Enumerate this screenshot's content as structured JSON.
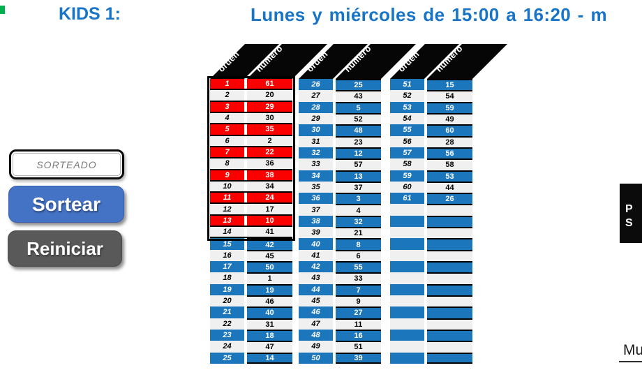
{
  "header": {
    "class_label": "KIDS 1:",
    "schedule": "Lunes y miércoles de 15:00 a 16:20 - m"
  },
  "controls": {
    "sorteado_label": "SORTEADO",
    "sortear_label": "Sortear",
    "reiniciar_label": "Reiniciar"
  },
  "table_headers": {
    "orden": "orden",
    "numero": "número"
  },
  "tables": [
    {
      "name": "orden-1-25",
      "boxed_rows": 14,
      "rows": [
        {
          "o": "1",
          "n": "61",
          "s": "red"
        },
        {
          "o": "2",
          "n": "20",
          "s": "light"
        },
        {
          "o": "3",
          "n": "29",
          "s": "red"
        },
        {
          "o": "4",
          "n": "30",
          "s": "light"
        },
        {
          "o": "5",
          "n": "35",
          "s": "red"
        },
        {
          "o": "6",
          "n": "2",
          "s": "light"
        },
        {
          "o": "7",
          "n": "22",
          "s": "red"
        },
        {
          "o": "8",
          "n": "36",
          "s": "light"
        },
        {
          "o": "9",
          "n": "38",
          "s": "red"
        },
        {
          "o": "10",
          "n": "34",
          "s": "light"
        },
        {
          "o": "11",
          "n": "24",
          "s": "red"
        },
        {
          "o": "12",
          "n": "17",
          "s": "light"
        },
        {
          "o": "13",
          "n": "10",
          "s": "red"
        },
        {
          "o": "14",
          "n": "41",
          "s": "light"
        },
        {
          "o": "15",
          "n": "42",
          "s": "blue"
        },
        {
          "o": "16",
          "n": "45",
          "s": "light"
        },
        {
          "o": "17",
          "n": "50",
          "s": "blue"
        },
        {
          "o": "18",
          "n": "1",
          "s": "light"
        },
        {
          "o": "19",
          "n": "19",
          "s": "blue"
        },
        {
          "o": "20",
          "n": "46",
          "s": "light"
        },
        {
          "o": "21",
          "n": "40",
          "s": "blue"
        },
        {
          "o": "22",
          "n": "31",
          "s": "light"
        },
        {
          "o": "23",
          "n": "18",
          "s": "blue"
        },
        {
          "o": "24",
          "n": "47",
          "s": "light"
        },
        {
          "o": "25",
          "n": "14",
          "s": "blue"
        }
      ]
    },
    {
      "name": "orden-26-50",
      "boxed_rows": 0,
      "rows": [
        {
          "o": "26",
          "n": "25",
          "s": "blue"
        },
        {
          "o": "27",
          "n": "43",
          "s": "light"
        },
        {
          "o": "28",
          "n": "5",
          "s": "blue"
        },
        {
          "o": "29",
          "n": "52",
          "s": "light"
        },
        {
          "o": "30",
          "n": "48",
          "s": "blue"
        },
        {
          "o": "31",
          "n": "23",
          "s": "light"
        },
        {
          "o": "32",
          "n": "12",
          "s": "blue"
        },
        {
          "o": "33",
          "n": "57",
          "s": "light"
        },
        {
          "o": "34",
          "n": "13",
          "s": "blue"
        },
        {
          "o": "35",
          "n": "37",
          "s": "light"
        },
        {
          "o": "36",
          "n": "3",
          "s": "blue"
        },
        {
          "o": "37",
          "n": "4",
          "s": "light"
        },
        {
          "o": "38",
          "n": "32",
          "s": "blue"
        },
        {
          "o": "39",
          "n": "21",
          "s": "light"
        },
        {
          "o": "40",
          "n": "8",
          "s": "blue"
        },
        {
          "o": "41",
          "n": "6",
          "s": "light"
        },
        {
          "o": "42",
          "n": "55",
          "s": "blue"
        },
        {
          "o": "43",
          "n": "33",
          "s": "light"
        },
        {
          "o": "44",
          "n": "7",
          "s": "blue"
        },
        {
          "o": "45",
          "n": "9",
          "s": "light"
        },
        {
          "o": "46",
          "n": "27",
          "s": "blue"
        },
        {
          "o": "47",
          "n": "11",
          "s": "light"
        },
        {
          "o": "48",
          "n": "16",
          "s": "blue"
        },
        {
          "o": "49",
          "n": "51",
          "s": "light"
        },
        {
          "o": "50",
          "n": "39",
          "s": "blue"
        }
      ]
    },
    {
      "name": "orden-51-75",
      "boxed_rows": 0,
      "rows": [
        {
          "o": "51",
          "n": "15",
          "s": "blue"
        },
        {
          "o": "52",
          "n": "54",
          "s": "light"
        },
        {
          "o": "53",
          "n": "59",
          "s": "blue"
        },
        {
          "o": "54",
          "n": "49",
          "s": "light"
        },
        {
          "o": "55",
          "n": "60",
          "s": "blue"
        },
        {
          "o": "56",
          "n": "28",
          "s": "light"
        },
        {
          "o": "57",
          "n": "56",
          "s": "blue"
        },
        {
          "o": "58",
          "n": "58",
          "s": "light"
        },
        {
          "o": "59",
          "n": "53",
          "s": "blue"
        },
        {
          "o": "60",
          "n": "44",
          "s": "light"
        },
        {
          "o": "61",
          "n": "26",
          "s": "blue"
        },
        {
          "o": "",
          "n": "",
          "s": "light-empty"
        },
        {
          "o": "",
          "n": "",
          "s": "blue-empty"
        },
        {
          "o": "",
          "n": "",
          "s": "light-empty"
        },
        {
          "o": "",
          "n": "",
          "s": "blue-empty"
        },
        {
          "o": "",
          "n": "",
          "s": "light-empty"
        },
        {
          "o": "",
          "n": "",
          "s": "blue-empty"
        },
        {
          "o": "",
          "n": "",
          "s": "light-empty"
        },
        {
          "o": "",
          "n": "",
          "s": "blue-empty"
        },
        {
          "o": "",
          "n": "",
          "s": "light-empty"
        },
        {
          "o": "",
          "n": "",
          "s": "blue-empty"
        },
        {
          "o": "",
          "n": "",
          "s": "light-empty"
        },
        {
          "o": "",
          "n": "",
          "s": "blue-empty"
        },
        {
          "o": "",
          "n": "",
          "s": "light-empty"
        },
        {
          "o": "",
          "n": "",
          "s": "blue-empty"
        }
      ]
    }
  ],
  "right_panel": {
    "line1": "P",
    "line2": "S",
    "footer_link": "Mu"
  },
  "colors": {
    "blue": "#1B76BC",
    "red": "#FC0000",
    "gray": "#F0F0F0",
    "titleblue": "#1874C6",
    "btnblue": "#4472C4",
    "btngray": "#595959",
    "green": "#00B050"
  }
}
